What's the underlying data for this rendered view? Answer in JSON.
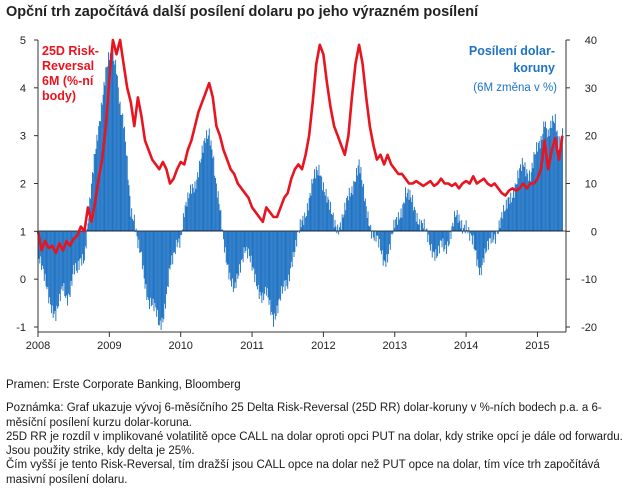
{
  "title": "Opční trh započítává další posílení dolaru po jeho výrazném posílení",
  "chart_data": {
    "type": "bar+line",
    "left_axis": {
      "ticks": [
        "5",
        "4",
        "3",
        "2",
        "1",
        "0",
        "-1"
      ],
      "ylim": [
        -1,
        5
      ]
    },
    "right_axis": {
      "ticks": [
        "40",
        "30",
        "20",
        "10",
        "0",
        "-10",
        "-20"
      ],
      "ylim": [
        -20,
        40
      ]
    },
    "x_ticks": [
      "2008",
      "2009",
      "2010",
      "2011",
      "2012",
      "2013",
      "2014",
      "2015"
    ],
    "x_range": [
      2008.0,
      2015.4
    ],
    "series": [
      {
        "name": "25D Risk-Reversal 6M (%-ní body)",
        "label_lines": [
          "25D Risk-",
          "Reversal",
          "6M (%-ní",
          "body)"
        ],
        "type": "line",
        "axis": "left",
        "color": "#e8141f",
        "points": [
          [
            2008.0,
            1.0
          ],
          [
            2008.05,
            0.6
          ],
          [
            2008.1,
            0.8
          ],
          [
            2008.15,
            0.65
          ],
          [
            2008.2,
            0.7
          ],
          [
            2008.25,
            0.55
          ],
          [
            2008.3,
            0.75
          ],
          [
            2008.35,
            0.6
          ],
          [
            2008.4,
            0.8
          ],
          [
            2008.45,
            0.7
          ],
          [
            2008.5,
            0.85
          ],
          [
            2008.55,
            0.9
          ],
          [
            2008.6,
            1.1
          ],
          [
            2008.65,
            1.0
          ],
          [
            2008.7,
            1.5
          ],
          [
            2008.75,
            1.2
          ],
          [
            2008.8,
            1.6
          ],
          [
            2008.85,
            2.1
          ],
          [
            2008.9,
            2.5
          ],
          [
            2008.95,
            3.2
          ],
          [
            2009.0,
            4.2
          ],
          [
            2009.05,
            5.0
          ],
          [
            2009.1,
            4.7
          ],
          [
            2009.15,
            5.0
          ],
          [
            2009.2,
            4.5
          ],
          [
            2009.25,
            4.0
          ],
          [
            2009.3,
            3.7
          ],
          [
            2009.35,
            3.2
          ],
          [
            2009.4,
            3.8
          ],
          [
            2009.45,
            3.4
          ],
          [
            2009.5,
            2.9
          ],
          [
            2009.55,
            2.7
          ],
          [
            2009.6,
            2.5
          ],
          [
            2009.65,
            2.4
          ],
          [
            2009.7,
            2.3
          ],
          [
            2009.75,
            2.45
          ],
          [
            2009.8,
            2.3
          ],
          [
            2009.85,
            2.0
          ],
          [
            2009.9,
            2.1
          ],
          [
            2009.95,
            2.3
          ],
          [
            2010.0,
            2.45
          ],
          [
            2010.05,
            2.4
          ],
          [
            2010.1,
            2.7
          ],
          [
            2010.15,
            2.9
          ],
          [
            2010.2,
            3.2
          ],
          [
            2010.25,
            3.5
          ],
          [
            2010.3,
            3.7
          ],
          [
            2010.35,
            3.9
          ],
          [
            2010.4,
            4.1
          ],
          [
            2010.45,
            3.8
          ],
          [
            2010.5,
            3.2
          ],
          [
            2010.55,
            3.0
          ],
          [
            2010.6,
            2.7
          ],
          [
            2010.65,
            2.5
          ],
          [
            2010.7,
            2.3
          ],
          [
            2010.75,
            2.2
          ],
          [
            2010.8,
            2.0
          ],
          [
            2010.85,
            1.9
          ],
          [
            2010.9,
            1.8
          ],
          [
            2010.95,
            1.7
          ],
          [
            2011.0,
            1.5
          ],
          [
            2011.05,
            1.4
          ],
          [
            2011.1,
            1.3
          ],
          [
            2011.15,
            1.2
          ],
          [
            2011.2,
            1.5
          ],
          [
            2011.25,
            1.4
          ],
          [
            2011.3,
            1.3
          ],
          [
            2011.35,
            1.3
          ],
          [
            2011.4,
            1.5
          ],
          [
            2011.45,
            1.7
          ],
          [
            2011.5,
            1.8
          ],
          [
            2011.55,
            2.1
          ],
          [
            2011.6,
            2.3
          ],
          [
            2011.65,
            2.4
          ],
          [
            2011.7,
            2.3
          ],
          [
            2011.75,
            2.6
          ],
          [
            2011.8,
            3.0
          ],
          [
            2011.85,
            3.7
          ],
          [
            2011.9,
            4.5
          ],
          [
            2011.95,
            4.9
          ],
          [
            2012.0,
            4.7
          ],
          [
            2012.05,
            4.1
          ],
          [
            2012.1,
            3.6
          ],
          [
            2012.15,
            3.2
          ],
          [
            2012.2,
            3.0
          ],
          [
            2012.25,
            2.8
          ],
          [
            2012.3,
            2.6
          ],
          [
            2012.35,
            3.0
          ],
          [
            2012.4,
            3.8
          ],
          [
            2012.45,
            4.5
          ],
          [
            2012.5,
            4.9
          ],
          [
            2012.55,
            4.5
          ],
          [
            2012.6,
            3.8
          ],
          [
            2012.65,
            3.2
          ],
          [
            2012.7,
            2.8
          ],
          [
            2012.75,
            2.5
          ],
          [
            2012.8,
            2.6
          ],
          [
            2012.85,
            2.4
          ],
          [
            2012.9,
            2.6
          ],
          [
            2012.95,
            2.4
          ],
          [
            2013.0,
            2.3
          ],
          [
            2013.05,
            2.2
          ],
          [
            2013.1,
            2.2
          ],
          [
            2013.15,
            2.1
          ],
          [
            2013.2,
            2.0
          ],
          [
            2013.25,
            2.0
          ],
          [
            2013.3,
            2.05
          ],
          [
            2013.35,
            2.0
          ],
          [
            2013.4,
            1.95
          ],
          [
            2013.45,
            2.0
          ],
          [
            2013.5,
            2.05
          ],
          [
            2013.55,
            1.95
          ],
          [
            2013.6,
            2.0
          ],
          [
            2013.65,
            2.1
          ],
          [
            2013.7,
            2.0
          ],
          [
            2013.75,
            2.0
          ],
          [
            2013.8,
            1.95
          ],
          [
            2013.85,
            2.0
          ],
          [
            2013.9,
            1.9
          ],
          [
            2013.95,
            2.0
          ],
          [
            2014.0,
            2.05
          ],
          [
            2014.05,
            2.0
          ],
          [
            2014.1,
            2.15
          ],
          [
            2014.15,
            2.0
          ],
          [
            2014.2,
            2.05
          ],
          [
            2014.25,
            2.1
          ],
          [
            2014.3,
            2.0
          ],
          [
            2014.35,
            1.95
          ],
          [
            2014.4,
            2.0
          ],
          [
            2014.45,
            1.9
          ],
          [
            2014.5,
            1.8
          ],
          [
            2014.55,
            1.75
          ],
          [
            2014.6,
            1.85
          ],
          [
            2014.65,
            1.9
          ],
          [
            2014.7,
            1.85
          ],
          [
            2014.75,
            1.9
          ],
          [
            2014.8,
            2.0
          ],
          [
            2014.85,
            1.9
          ],
          [
            2014.9,
            2.0
          ],
          [
            2014.95,
            2.0
          ],
          [
            2015.0,
            2.1
          ],
          [
            2015.05,
            2.3
          ],
          [
            2015.1,
            2.9
          ],
          [
            2015.15,
            2.3
          ],
          [
            2015.2,
            2.7
          ],
          [
            2015.25,
            2.95
          ],
          [
            2015.3,
            2.5
          ],
          [
            2015.35,
            3.0
          ]
        ]
      },
      {
        "name": "Posílení dolar-koruny (6M změna v %)",
        "label_lines": [
          "Posílení dolar-",
          "koruny"
        ],
        "sublabel": "(6M změna v %)",
        "type": "bar",
        "axis": "right",
        "color": "#1f73c4",
        "points": [
          [
            2008.0,
            -4
          ],
          [
            2008.05,
            -7
          ],
          [
            2008.1,
            -11
          ],
          [
            2008.15,
            -14
          ],
          [
            2008.2,
            -16
          ],
          [
            2008.25,
            -17
          ],
          [
            2008.3,
            -15
          ],
          [
            2008.35,
            -12
          ],
          [
            2008.4,
            -14
          ],
          [
            2008.45,
            -12
          ],
          [
            2008.5,
            -8
          ],
          [
            2008.55,
            -9
          ],
          [
            2008.6,
            -6
          ],
          [
            2008.65,
            -5
          ],
          [
            2008.7,
            2
          ],
          [
            2008.75,
            9
          ],
          [
            2008.8,
            16
          ],
          [
            2008.85,
            22
          ],
          [
            2008.9,
            28
          ],
          [
            2008.95,
            33
          ],
          [
            2009.0,
            36
          ],
          [
            2009.05,
            37
          ],
          [
            2009.1,
            35
          ],
          [
            2009.15,
            26
          ],
          [
            2009.2,
            22
          ],
          [
            2009.25,
            14
          ],
          [
            2009.3,
            5
          ],
          [
            2009.35,
            3
          ],
          [
            2009.4,
            -3
          ],
          [
            2009.45,
            -6
          ],
          [
            2009.5,
            -11
          ],
          [
            2009.55,
            -14
          ],
          [
            2009.6,
            -15
          ],
          [
            2009.65,
            -17
          ],
          [
            2009.7,
            -20
          ],
          [
            2009.75,
            -18
          ],
          [
            2009.8,
            -13
          ],
          [
            2009.85,
            -8
          ],
          [
            2009.9,
            -6
          ],
          [
            2009.95,
            -2
          ],
          [
            2010.0,
            -1
          ],
          [
            2010.05,
            4
          ],
          [
            2010.1,
            6
          ],
          [
            2010.15,
            9
          ],
          [
            2010.2,
            10
          ],
          [
            2010.25,
            13
          ],
          [
            2010.3,
            16
          ],
          [
            2010.35,
            19
          ],
          [
            2010.4,
            21
          ],
          [
            2010.45,
            17
          ],
          [
            2010.5,
            9
          ],
          [
            2010.55,
            4
          ],
          [
            2010.6,
            -2
          ],
          [
            2010.65,
            -6
          ],
          [
            2010.7,
            -10
          ],
          [
            2010.75,
            -13
          ],
          [
            2010.8,
            -10
          ],
          [
            2010.85,
            -6
          ],
          [
            2010.9,
            -3
          ],
          [
            2010.95,
            -5
          ],
          [
            2011.0,
            -8
          ],
          [
            2011.05,
            -10
          ],
          [
            2011.1,
            -12
          ],
          [
            2011.15,
            -14
          ],
          [
            2011.2,
            -13
          ],
          [
            2011.25,
            -16
          ],
          [
            2011.3,
            -18
          ],
          [
            2011.35,
            -16
          ],
          [
            2011.4,
            -14
          ],
          [
            2011.45,
            -12
          ],
          [
            2011.5,
            -11
          ],
          [
            2011.55,
            -6
          ],
          [
            2011.6,
            -4
          ],
          [
            2011.65,
            -1
          ],
          [
            2011.7,
            2
          ],
          [
            2011.75,
            4
          ],
          [
            2011.8,
            7
          ],
          [
            2011.85,
            10
          ],
          [
            2011.9,
            12
          ],
          [
            2011.95,
            13
          ],
          [
            2012.0,
            10
          ],
          [
            2012.05,
            7
          ],
          [
            2012.1,
            4
          ],
          [
            2012.15,
            2
          ],
          [
            2012.2,
            1
          ],
          [
            2012.25,
            2
          ],
          [
            2012.3,
            4
          ],
          [
            2012.35,
            7
          ],
          [
            2012.4,
            9
          ],
          [
            2012.45,
            12
          ],
          [
            2012.5,
            14
          ],
          [
            2012.55,
            9
          ],
          [
            2012.6,
            5
          ],
          [
            2012.65,
            2
          ],
          [
            2012.7,
            -1
          ],
          [
            2012.75,
            -2
          ],
          [
            2012.8,
            -4
          ],
          [
            2012.85,
            -6
          ],
          [
            2012.9,
            -5
          ],
          [
            2012.95,
            -2
          ],
          [
            2013.0,
            1
          ],
          [
            2013.05,
            3
          ],
          [
            2013.1,
            5
          ],
          [
            2013.15,
            8
          ],
          [
            2013.2,
            7
          ],
          [
            2013.25,
            6
          ],
          [
            2013.3,
            4
          ],
          [
            2013.35,
            2
          ],
          [
            2013.4,
            1
          ],
          [
            2013.45,
            -1
          ],
          [
            2013.5,
            -3
          ],
          [
            2013.55,
            -4
          ],
          [
            2013.6,
            -5
          ],
          [
            2013.65,
            -3
          ],
          [
            2013.7,
            -4
          ],
          [
            2013.75,
            -2
          ],
          [
            2013.8,
            1
          ],
          [
            2013.85,
            3
          ],
          [
            2013.9,
            2
          ],
          [
            2013.95,
            1
          ],
          [
            2014.0,
            2
          ],
          [
            2014.05,
            -1
          ],
          [
            2014.1,
            -3
          ],
          [
            2014.15,
            -6
          ],
          [
            2014.2,
            -8
          ],
          [
            2014.25,
            -5
          ],
          [
            2014.3,
            -4
          ],
          [
            2014.35,
            -2
          ],
          [
            2014.4,
            -1
          ],
          [
            2014.45,
            1
          ],
          [
            2014.5,
            3
          ],
          [
            2014.55,
            4
          ],
          [
            2014.6,
            7
          ],
          [
            2014.65,
            8
          ],
          [
            2014.7,
            10
          ],
          [
            2014.75,
            12
          ],
          [
            2014.8,
            14
          ],
          [
            2014.85,
            13
          ],
          [
            2014.9,
            12
          ],
          [
            2014.95,
            15
          ],
          [
            2015.0,
            17
          ],
          [
            2015.05,
            19
          ],
          [
            2015.1,
            24
          ],
          [
            2015.15,
            20
          ],
          [
            2015.2,
            22
          ],
          [
            2015.25,
            23
          ],
          [
            2015.3,
            19
          ],
          [
            2015.35,
            21
          ]
        ]
      }
    ]
  },
  "notes": {
    "source": "Pramen: Erste Corporate Banking, Bloomberg",
    "note_1": "Poznámka: Graf ukazuje vývoj 6-měsíčního 25 Delta Risk-Reversal (25D RR) dolar-koruny v %-ních bodech p.a. a 6-měsíční posílení kurzu dolar-koruna.",
    "note_2": "25D RR je rozdíl v implikované volatilitě opce CALL na dolar oproti opci PUT na dolar, kdy strike opcí je dále od forwardu. Jsou použity strike, kdy delta je 25%.",
    "note_3": "Čím vyšší je tento Risk-Reversal, tím dražší jsou CALL opce na dolar než PUT opce na dolar, tím více trh započítává masivní posílení dolaru."
  }
}
